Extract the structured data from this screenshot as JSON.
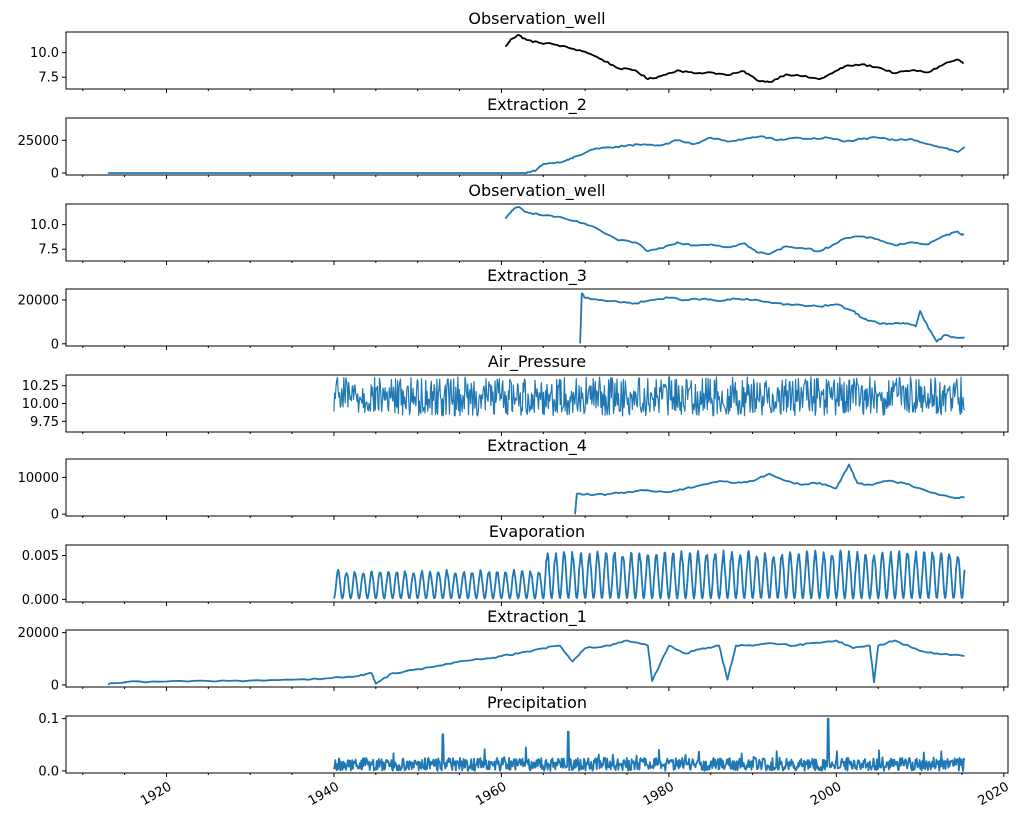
{
  "figure": {
    "x_ticks": [
      "1920",
      "1940",
      "1960",
      "1980",
      "2000",
      "2020"
    ],
    "x_tick_values": [
      1920,
      1940,
      1960,
      1980,
      2000,
      2020
    ],
    "x_minor_step": 5,
    "xlim": [
      1908,
      2020.5
    ]
  },
  "chart_data": [
    {
      "type": "line",
      "title": "Observation_well",
      "color": "#000000",
      "ylim": [
        6.3,
        12.1
      ],
      "y_ticks": [
        "7.5",
        "10.0"
      ],
      "y_tick_values": [
        7.5,
        10.0
      ],
      "series": [
        {
          "x": [
            1960.5,
            1961.2,
            1962,
            1963,
            1964.5,
            1966,
            1968,
            1970,
            1972,
            1974,
            1976,
            1977.5,
            1979,
            1981,
            1983,
            1985,
            1987,
            1989,
            1990.5,
            1992,
            1994,
            1996,
            1998,
            1999.5,
            2001,
            2003,
            2005,
            2007,
            2009,
            2011,
            2013,
            2014.5,
            2015.2
          ],
          "y": [
            10.6,
            11.4,
            11.8,
            11.3,
            11.0,
            10.9,
            10.5,
            10.1,
            9.3,
            8.4,
            8.2,
            7.3,
            7.6,
            8.2,
            7.9,
            8.0,
            7.7,
            8.1,
            7.2,
            7.0,
            7.8,
            7.6,
            7.3,
            7.9,
            8.6,
            8.8,
            8.5,
            7.9,
            8.2,
            8.0,
            8.9,
            9.3,
            8.9
          ]
        }
      ]
    },
    {
      "type": "line",
      "title": "Extraction_2",
      "color": "#1f77b4",
      "ylim": [
        -1500,
        42000
      ],
      "y_ticks": [
        "0",
        "25000"
      ],
      "y_tick_values": [
        0,
        25000
      ],
      "series": [
        {
          "x": [
            1913,
            1930,
            1955,
            1963,
            1964,
            1965,
            1967,
            1968,
            1969,
            1971,
            1973,
            1975,
            1977,
            1979,
            1981,
            1983,
            1985,
            1987,
            1989,
            1991,
            1993,
            1995,
            1997,
            1999,
            2001,
            2003,
            2005,
            2007,
            2009,
            2011,
            2013,
            2014.5,
            2015.3
          ],
          "y": [
            0,
            0,
            0,
            0,
            1500,
            7000,
            8000,
            10000,
            13000,
            18000,
            19500,
            21000,
            22000,
            21000,
            25000,
            22000,
            27000,
            24000,
            26000,
            28000,
            25000,
            27000,
            26000,
            27000,
            24000,
            26000,
            27000,
            25000,
            26000,
            22000,
            19000,
            16000,
            20000
          ]
        }
      ]
    },
    {
      "type": "line",
      "title": "Observation_well",
      "color": "#1f77b4",
      "ylim": [
        6.3,
        12.1
      ],
      "y_ticks": [
        "7.5",
        "10.0"
      ],
      "y_tick_values": [
        7.5,
        10.0
      ],
      "series": [
        {
          "x": [
            1960.5,
            1961.2,
            1962,
            1963,
            1964.5,
            1966,
            1968,
            1970,
            1972,
            1974,
            1976,
            1977.5,
            1979,
            1981,
            1983,
            1985,
            1987,
            1989,
            1990.5,
            1992,
            1994,
            1996,
            1998,
            1999.5,
            2001,
            2003,
            2005,
            2007,
            2009,
            2011,
            2013,
            2014.5,
            2015.2
          ],
          "y": [
            10.6,
            11.4,
            11.8,
            11.3,
            11.0,
            10.9,
            10.5,
            10.1,
            9.3,
            8.4,
            8.2,
            7.3,
            7.6,
            8.2,
            7.9,
            8.0,
            7.7,
            8.1,
            7.2,
            7.0,
            7.8,
            7.6,
            7.3,
            7.9,
            8.6,
            8.8,
            8.5,
            7.9,
            8.2,
            8.0,
            8.9,
            9.3,
            8.9
          ]
        }
      ]
    },
    {
      "type": "line",
      "title": "Extraction_3",
      "color": "#1f77b4",
      "ylim": [
        -1000,
        25000
      ],
      "y_ticks": [
        "0",
        "20000"
      ],
      "y_tick_values": [
        0,
        20000
      ],
      "series": [
        {
          "x": [
            1969.4,
            1969.6,
            1970,
            1972,
            1974,
            1976,
            1978,
            1980,
            1982,
            1984,
            1986,
            1988,
            1990,
            1992,
            1994,
            1996,
            1998,
            2000,
            2002,
            2003,
            2004,
            2005,
            2006,
            2008,
            2009.5,
            2010,
            2011,
            2012,
            2013,
            2014,
            2015.3
          ],
          "y": [
            200,
            23000,
            21000,
            20000,
            19000,
            18500,
            20000,
            21000,
            20000,
            20500,
            19500,
            20500,
            20000,
            19000,
            18000,
            17500,
            17000,
            18000,
            15000,
            12000,
            10500,
            9500,
            9000,
            9500,
            8000,
            15000,
            7000,
            1000,
            4000,
            3000,
            3000
          ]
        }
      ]
    },
    {
      "type": "line",
      "title": "Air_Pressure",
      "color": "#1f77b4",
      "ylim": [
        9.6,
        10.4
      ],
      "y_ticks": [
        "9.75",
        "10.00",
        "10.25"
      ],
      "y_tick_values": [
        9.75,
        10.0,
        10.25
      ],
      "series": [
        {
          "x": [
            1940,
            1945,
            1950,
            1955,
            1960,
            1965,
            1970,
            1975,
            1980,
            1985,
            1990,
            1995,
            2000,
            2005,
            2010,
            2015.3
          ],
          "y": [
            10.1,
            10.05,
            10.1,
            10.08,
            10.1,
            10.05,
            10.12,
            10.08,
            10.1,
            10.05,
            10.1,
            10.08,
            10.12,
            10.05,
            10.1,
            10.08
          ]
        }
      ]
    },
    {
      "type": "line",
      "title": "Extraction_4",
      "color": "#1f77b4",
      "ylim": [
        -500,
        15000
      ],
      "y_ticks": [
        "0",
        "10000"
      ],
      "y_tick_values": [
        0,
        10000
      ],
      "series": [
        {
          "x": [
            1968.8,
            1969,
            1971,
            1973,
            1975,
            1977,
            1980,
            1982,
            1984,
            1986,
            1988,
            1990,
            1992,
            1994,
            1996,
            1998,
            2000,
            2001.5,
            2002.5,
            2004,
            2006,
            2008,
            2010,
            2012,
            2014,
            2015.3
          ],
          "y": [
            0,
            5500,
            5200,
            5500,
            6000,
            6500,
            6000,
            7000,
            8000,
            9000,
            8500,
            9000,
            11000,
            9000,
            8000,
            8500,
            7000,
            13500,
            8500,
            8000,
            9000,
            8500,
            7000,
            5500,
            4500,
            4500
          ]
        }
      ]
    },
    {
      "type": "line",
      "title": "Evaporation",
      "color": "#1f77b4",
      "ylim": [
        -0.0003,
        0.0062
      ],
      "y_ticks": [
        "0.000",
        "0.005"
      ],
      "y_tick_values": [
        0.0,
        0.005
      ],
      "series": [
        {
          "x": [
            1940,
            1945,
            1950,
            1955,
            1960,
            1965,
            1970,
            1975,
            1980,
            1985,
            1990,
            1995,
            2000,
            2005,
            2010,
            2015.3
          ],
          "y": [
            0.0003,
            0.0003,
            0.0003,
            0.0003,
            0.0003,
            0.0003,
            0.0003,
            0.0003,
            0.0003,
            0.0003,
            0.0003,
            0.0003,
            0.0003,
            0.0003,
            0.0003,
            0.0003
          ]
        }
      ]
    },
    {
      "type": "line",
      "title": "Extraction_1",
      "color": "#1f77b4",
      "ylim": [
        -800,
        21000
      ],
      "y_ticks": [
        "0",
        "20000"
      ],
      "y_tick_values": [
        0,
        20000
      ],
      "series": [
        {
          "x": [
            1913,
            1915,
            1920,
            1925,
            1930,
            1935,
            1939,
            1943,
            1944.5,
            1945,
            1947,
            1950,
            1953,
            1955,
            1958,
            1960,
            1962,
            1965,
            1967,
            1968.5,
            1970,
            1973,
            1975,
            1977.5,
            1978,
            1980,
            1982,
            1984,
            1986,
            1987,
            1988,
            1990,
            1992,
            1995,
            1997,
            2000,
            2002,
            2004,
            2004.5,
            2005,
            2007,
            2010,
            2012,
            2015.3
          ],
          "y": [
            200,
            1000,
            1300,
            1500,
            1700,
            2000,
            2500,
            3500,
            4500,
            500,
            4500,
            6000,
            7500,
            9000,
            10000,
            11000,
            12000,
            14000,
            15000,
            9000,
            14000,
            15000,
            17000,
            15000,
            1500,
            15000,
            12000,
            14000,
            15000,
            2000,
            15000,
            15000,
            16000,
            15000,
            16000,
            17000,
            14000,
            15000,
            1000,
            15000,
            17000,
            13000,
            12000,
            11000
          ]
        }
      ]
    },
    {
      "type": "line",
      "title": "Precipitation",
      "color": "#1f77b4",
      "ylim": [
        -0.004,
        0.105
      ],
      "y_ticks": [
        "0.0",
        "0.1"
      ],
      "y_tick_values": [
        0.0,
        0.1
      ],
      "series": [
        {
          "x": [
            1940,
            1945,
            1950,
            1953,
            1955,
            1960,
            1965,
            1968,
            1970,
            1975,
            1980,
            1985,
            1990,
            1995,
            1999,
            2000,
            2005,
            2010,
            2015.3
          ],
          "y": [
            0.005,
            0.006,
            0.005,
            0.07,
            0.005,
            0.006,
            0.005,
            0.075,
            0.005,
            0.006,
            0.005,
            0.006,
            0.005,
            0.006,
            0.1,
            0.005,
            0.006,
            0.005,
            0.005
          ]
        }
      ]
    }
  ]
}
